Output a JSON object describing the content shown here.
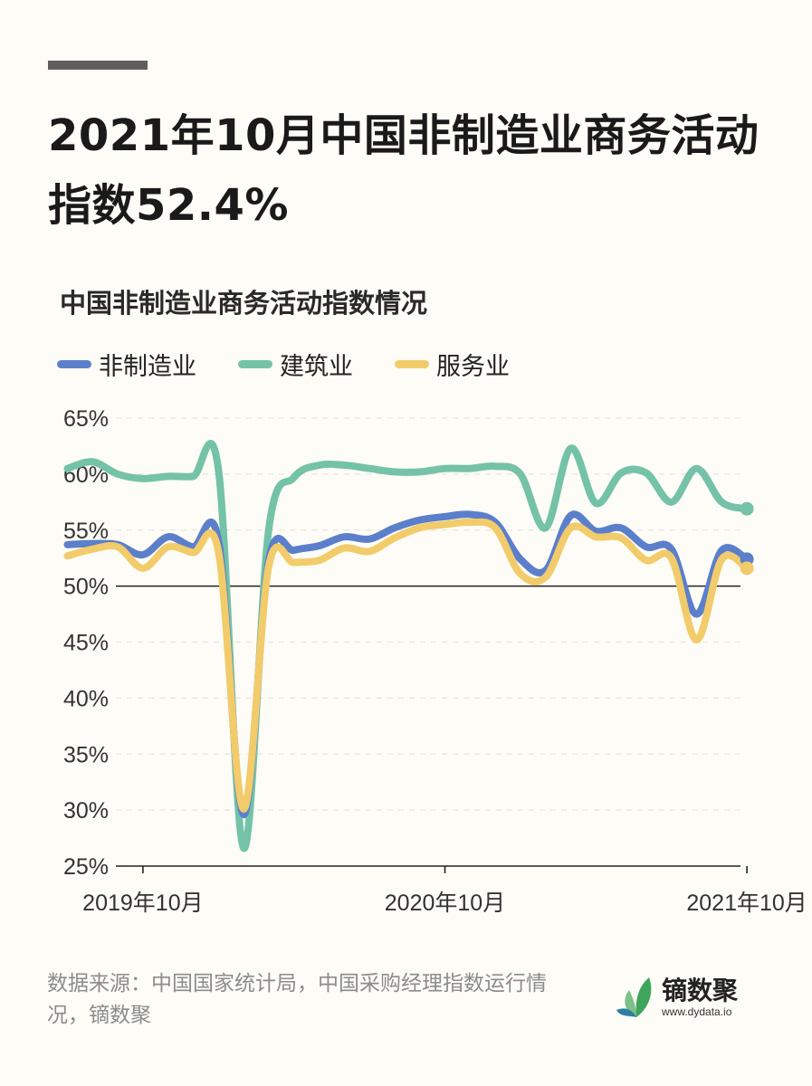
{
  "header": {
    "title": "2021年10月中国非制造业商务活动指数52.4%",
    "subtitle": "中国非制造业商务活动指数情况"
  },
  "footer": {
    "source": "数据来源：中国国家统计局，中国采购经理指数运行情况，镝数聚",
    "brand_name": "镝数聚",
    "brand_url": "www.dydata.io"
  },
  "chart_data": {
    "type": "line",
    "title": "中国非制造业商务活动指数情况",
    "x": [
      "2019-07",
      "2019-08",
      "2019-09",
      "2019-10",
      "2019-11",
      "2019-12",
      "2020-01",
      "2020-02",
      "2020-03",
      "2020-04",
      "2020-05",
      "2020-06",
      "2020-07",
      "2020-08",
      "2020-09",
      "2020-10",
      "2020-11",
      "2020-12",
      "2021-01",
      "2021-02",
      "2021-03",
      "2021-04",
      "2021-05",
      "2021-06",
      "2021-07",
      "2021-08",
      "2021-09",
      "2021-10"
    ],
    "x_tick_labels": [
      {
        "x": "2019-10",
        "label": "2019年10月"
      },
      {
        "x": "2020-10",
        "label": "2020年10月"
      },
      {
        "x": "2021-10",
        "label": "2021年10月"
      }
    ],
    "y_ticks": [
      "25%",
      "30%",
      "35%",
      "40%",
      "45%",
      "50%",
      "55%",
      "60%",
      "65%"
    ],
    "ylim": [
      25,
      65
    ],
    "reference_line": 50,
    "grid": true,
    "legend_position": "top-left",
    "series": [
      {
        "name": "非制造业",
        "color": "#5b7fcb",
        "values": [
          53.7,
          53.8,
          53.7,
          52.8,
          54.4,
          53.5,
          54.1,
          29.6,
          52.3,
          53.2,
          53.6,
          54.4,
          54.2,
          55.2,
          55.9,
          56.2,
          56.4,
          55.7,
          52.4,
          51.4,
          56.3,
          54.9,
          55.2,
          53.5,
          53.3,
          47.5,
          53.2,
          52.4
        ]
      },
      {
        "name": "建筑业",
        "color": "#74c2a8",
        "values": [
          60.5,
          61.1,
          60.0,
          59.6,
          59.8,
          59.8,
          60.4,
          26.6,
          55.1,
          59.7,
          60.8,
          60.8,
          60.5,
          60.2,
          60.2,
          60.5,
          60.5,
          60.7,
          60.0,
          55.2,
          62.3,
          57.4,
          60.1,
          60.1,
          57.5,
          60.5,
          57.5,
          56.9
        ]
      },
      {
        "name": "服务业",
        "color": "#f2cb6b",
        "values": [
          52.7,
          53.3,
          53.5,
          51.6,
          53.5,
          53.0,
          53.1,
          30.1,
          51.8,
          52.1,
          52.3,
          53.4,
          53.1,
          54.3,
          55.2,
          55.5,
          55.7,
          55.2,
          51.1,
          50.8,
          55.2,
          54.4,
          54.3,
          52.3,
          52.5,
          45.2,
          52.4,
          51.6
        ]
      }
    ]
  }
}
